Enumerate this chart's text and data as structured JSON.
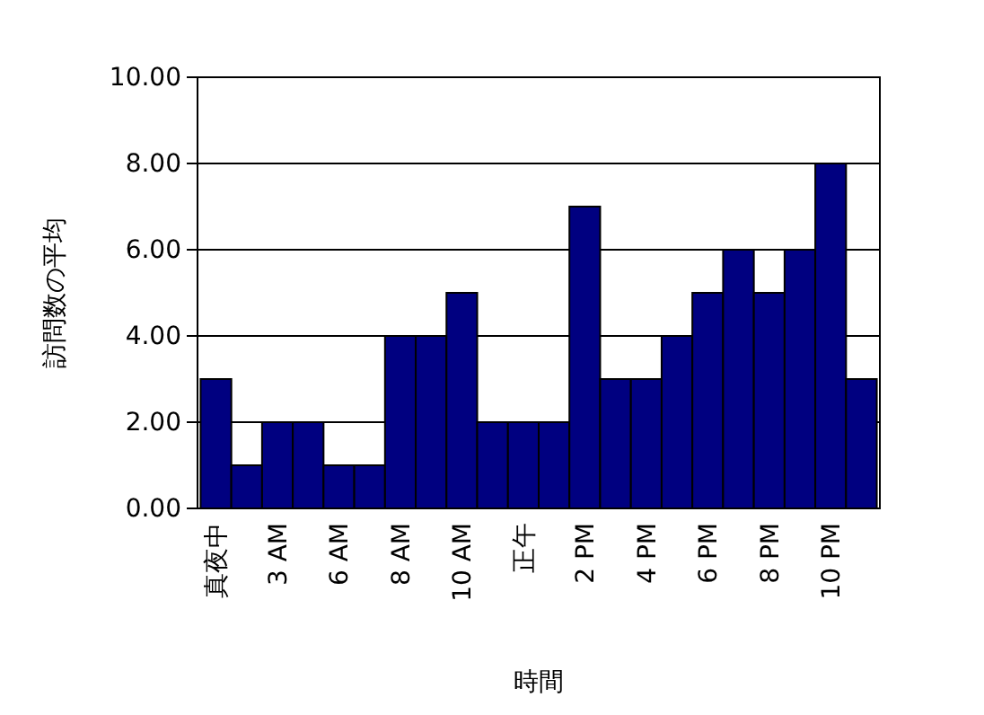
{
  "chart_data": {
    "type": "bar",
    "xlabel": "時間",
    "ylabel": "訪問数の平均",
    "categories": [
      "真夜中",
      null,
      "3 AM",
      null,
      "6 AM",
      null,
      "8 AM",
      null,
      "10 AM",
      null,
      "正午",
      null,
      "2 PM",
      null,
      "4 PM",
      null,
      "6 PM",
      null,
      "8 PM",
      null,
      "10 PM",
      null
    ],
    "values": [
      3,
      1,
      2,
      2,
      1,
      1,
      4,
      4,
      5,
      2,
      2,
      2,
      7,
      3,
      3,
      4,
      5,
      6,
      5,
      6,
      8,
      3
    ],
    "color": "#000080",
    "ylim": [
      0,
      10
    ],
    "yticks": [
      {
        "value": 0,
        "label": "0.00"
      },
      {
        "value": 2,
        "label": "2.00"
      },
      {
        "value": 4,
        "label": "4.00"
      },
      {
        "value": 6,
        "label": "6.00"
      },
      {
        "value": 8,
        "label": "8.00"
      },
      {
        "value": 10,
        "label": "10.00"
      }
    ],
    "grid": "y"
  }
}
